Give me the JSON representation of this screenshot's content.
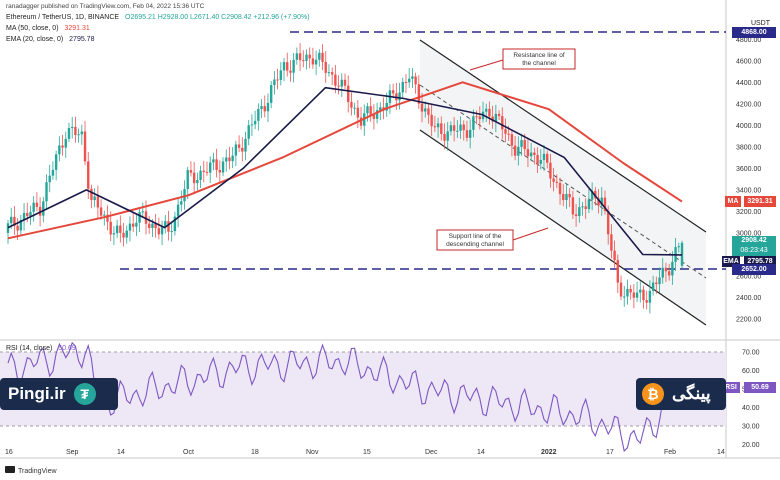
{
  "header": {
    "publisher": "ranadagger published on TradingView.com, Feb 04, 2022 15:36 UTC",
    "symbol": "Ethereum / TetherUS, 1D, BINANCE",
    "ohlc": "O2695.21  H2928.00  L2671.40  C2908.42  +212.96 (+7.90%)",
    "ma_label": "MA (50, close, 0)",
    "ma_value": "3291.31",
    "ema_label": "EMA (20, close, 0)",
    "ema_value": "2795.78",
    "rsi_label": "RSI (14, close)",
    "rsi_value": "50.69"
  },
  "price_axis": {
    "currency": "USDT",
    "ticks": [
      "4800.00",
      "4600.00",
      "4400.00",
      "4200.00",
      "4000.00",
      "3800.00",
      "3600.00",
      "3400.00",
      "3200.00",
      "3000.00",
      "2800.00",
      "2600.00",
      "2400.00",
      "2200.00"
    ]
  },
  "tags": {
    "ma_tag": "MA",
    "ma_val": "3291.31",
    "last_price": "2908.42",
    "countdown": "08:23:43",
    "ema_tag": "EMA",
    "ema_val": "2795.78",
    "support_val": "2652.00",
    "resistance_val": "4868.00",
    "rsi_tag": "RSI",
    "rsi_val": "50.69"
  },
  "rsi_axis": {
    "ticks": [
      "70.00",
      "60.00",
      "50.00",
      "40.00",
      "30.00",
      "20.00"
    ]
  },
  "time_axis": {
    "labels": [
      "16",
      "Sep",
      "14",
      "Oct",
      "18",
      "Nov",
      "15",
      "Dec",
      "14",
      "2022",
      "17",
      "Feb",
      "14"
    ]
  },
  "annotations": {
    "resistance": "Resistance line of the channel",
    "support": "Support line of the descending channel"
  },
  "footer": {
    "tradingview": "TradingView"
  },
  "brand": {
    "left": "Pingi.ir",
    "right": "پینگی"
  },
  "colors": {
    "up": "#26a69a",
    "down": "#ef5350",
    "ma": "#e5473b",
    "ema": "#1a1a4a",
    "rsi": "#7e57c2",
    "level_line": "#2a2a8a",
    "last": "#26a69a"
  },
  "chart_data": {
    "type": "candlestick",
    "title": "Ethereum / TetherUS, 1D, BINANCE",
    "price_range": [
      2050,
      4980
    ],
    "horizontal_levels": [
      4868,
      2652
    ],
    "series": [
      {
        "name": "MA (50, close, 0)",
        "x": [
          "2021-08-16",
          "2021-09-10",
          "2021-10-01",
          "2021-10-25",
          "2021-11-20",
          "2021-12-10",
          "2022-01-01",
          "2022-01-20",
          "2022-02-04"
        ],
        "values": [
          2950,
          3150,
          3350,
          3700,
          4150,
          4400,
          4150,
          3650,
          3291
        ]
      },
      {
        "name": "EMA (20, close, 0)",
        "x": [
          "2021-08-16",
          "2021-09-05",
          "2021-09-25",
          "2021-10-15",
          "2021-11-05",
          "2021-11-25",
          "2021-12-15",
          "2022-01-05",
          "2022-01-25",
          "2022-02-04"
        ],
        "values": [
          3050,
          3400,
          3050,
          3600,
          4350,
          4250,
          4100,
          3700,
          2800,
          2796
        ]
      },
      {
        "name": "RSI (14, close)",
        "x": [
          "2021-08-16",
          "2021-09-05",
          "2021-09-08",
          "2021-10-15",
          "2021-11-10",
          "2021-11-30",
          "2022-01-10",
          "2022-01-24",
          "2022-02-04"
        ],
        "values": [
          60,
          72,
          42,
          62,
          65,
          50,
          35,
          22,
          50.69
        ]
      }
    ],
    "rsi_range": [
      10,
      80
    ],
    "last": {
      "open": 2695.21,
      "high": 2928.0,
      "low": 2671.4,
      "close": 2908.42,
      "change": 212.96,
      "change_pct": 7.9
    }
  }
}
